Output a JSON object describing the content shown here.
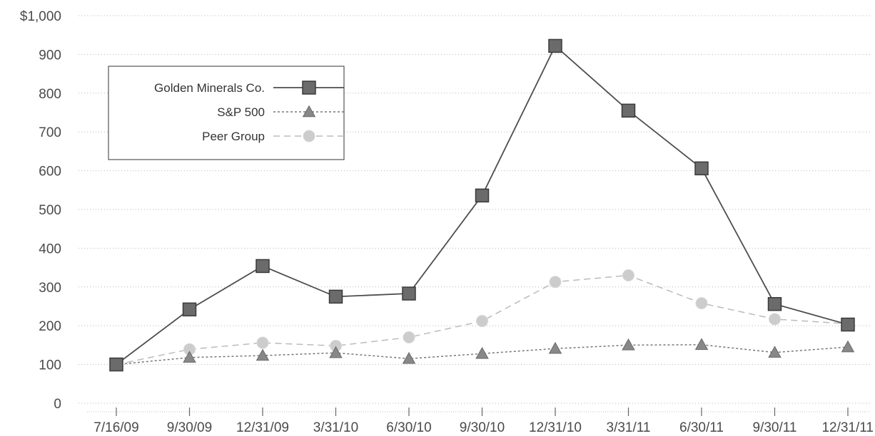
{
  "chart_data": {
    "type": "line",
    "title": "",
    "xlabel": "",
    "ylabel": "",
    "categories": [
      "7/16/09",
      "9/30/09",
      "12/31/09",
      "3/31/10",
      "6/30/10",
      "9/30/10",
      "12/31/10",
      "3/31/11",
      "6/30/11",
      "9/30/11",
      "12/31/11"
    ],
    "y_ticks": [
      "0",
      "100",
      "200",
      "300",
      "400",
      "500",
      "600",
      "700",
      "800",
      "900",
      "$1,000"
    ],
    "ylim": [
      0,
      1000
    ],
    "grid": true,
    "legend_position": "top-left",
    "series": [
      {
        "name": "Golden Minerals Co.",
        "values": [
          100,
          242,
          354,
          275,
          283,
          536,
          922,
          755,
          606,
          256,
          203
        ],
        "marker": "square",
        "line_style": "solid",
        "color": "#4d4d4d",
        "marker_color": "#6b6b6b"
      },
      {
        "name": "S&P 500",
        "values": [
          100,
          118,
          123,
          130,
          115,
          128,
          141,
          150,
          151,
          131,
          145
        ],
        "marker": "triangle",
        "line_style": "dotted",
        "color": "#777777",
        "marker_color": "#888888"
      },
      {
        "name": "Peer Group",
        "values": [
          100,
          139,
          156,
          148,
          170,
          212,
          313,
          330,
          258,
          217,
          205
        ],
        "marker": "circle",
        "line_style": "dashed",
        "color": "#bbbbbb",
        "marker_color": "#cccccc"
      }
    ]
  }
}
